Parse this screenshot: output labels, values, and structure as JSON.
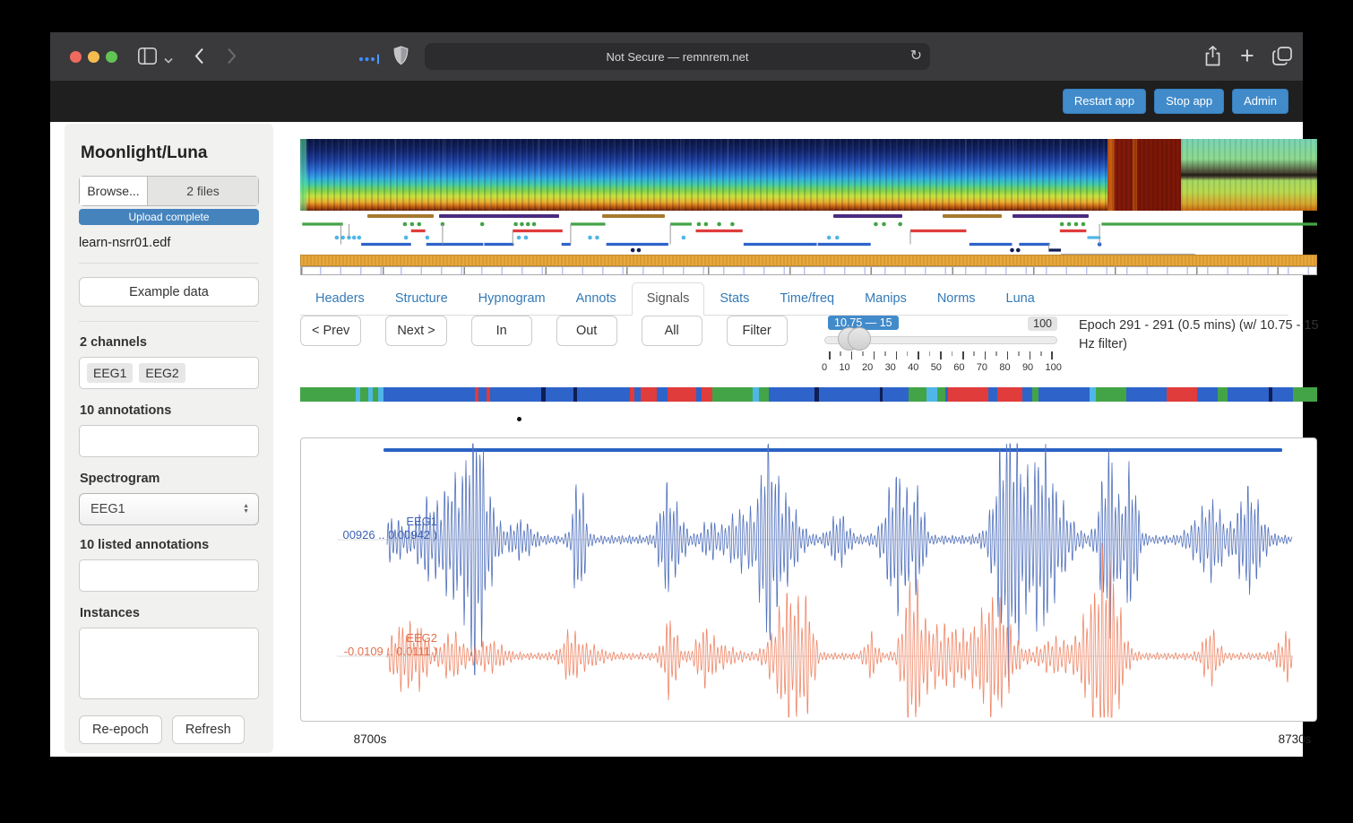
{
  "browser": {
    "url_text": "Not Secure — remnrem.net"
  },
  "app_header": {
    "restart_label": "Restart app",
    "stop_label": "Stop app",
    "admin_label": "Admin"
  },
  "sidebar": {
    "title": "Moonlight/Luna",
    "browse_label": "Browse...",
    "files_label": "2 files",
    "upload_status": "Upload complete",
    "file_name": "learn-nsrr01.edf",
    "example_button": "Example data",
    "channels_label": "2 channels",
    "channels": [
      "EEG1",
      "EEG2"
    ],
    "annotations_label": "10 annotations",
    "spectrogram_label": "Spectrogram",
    "spectrogram_value": "EEG1",
    "listed_annotations_label": "10 listed annotations",
    "instances_label": "Instances",
    "reepoch_button": "Re-epoch",
    "refresh_button": "Refresh"
  },
  "tabs": {
    "items": [
      "Headers",
      "Structure",
      "Hypnogram",
      "Annots",
      "Signals",
      "Stats",
      "Time/freq",
      "Manips",
      "Norms",
      "Luna"
    ],
    "active": "Signals"
  },
  "controls": {
    "prev": "< Prev",
    "next": "Next >",
    "in": "In",
    "out": "Out",
    "all": "All",
    "filter": "Filter"
  },
  "slider": {
    "range_label": "10.75 — 15",
    "max_label": "100",
    "from": 10.75,
    "to": 15,
    "min": 0,
    "max": 100,
    "ticks": [
      "0",
      "10",
      "20",
      "30",
      "40",
      "50",
      "60",
      "70",
      "80",
      "90",
      "100"
    ]
  },
  "epoch_info": "Epoch 291 - 291 (0.5 mins) (w/ 10.75 - 15 Hz filter)",
  "signals": {
    "eeg1": {
      "label": "EEG1",
      "range": "00926 .. 0.00942  )",
      "color": "#5272bd",
      "label_color": "#3f62b5"
    },
    "eeg2": {
      "label": "EEG2",
      "range": "-0.0109 .. 0.0111  )",
      "color": "#ef8767",
      "label_color": "#e4704e"
    },
    "x_start": "8700s",
    "x_end": "8730s",
    "marker_color": "#2a62c4"
  },
  "annotation_track": {
    "segments": [
      [
        "br",
        0.066,
        0.065
      ],
      [
        "pu",
        0.137,
        0.118
      ],
      [
        "br",
        0.297,
        0.062
      ],
      [
        "pu",
        0.524,
        0.068
      ],
      [
        "br",
        0.632,
        0.058
      ],
      [
        "pu",
        0.7,
        0.075
      ]
    ]
  },
  "hypnogram_track": {
    "items": [
      [
        "r",
        0.002,
        0.04,
        0,
        "g"
      ],
      [
        "d",
        0.036,
        2,
        0,
        "c"
      ],
      [
        "d",
        0.042,
        2,
        0,
        "c"
      ],
      [
        "d",
        0.048,
        2,
        0,
        "c"
      ],
      [
        "d",
        0.053,
        2,
        0,
        "c"
      ],
      [
        "d",
        0.058,
        2,
        0,
        "c"
      ],
      [
        "v",
        0.04,
        0,
        3,
        ""
      ],
      [
        "v",
        0.048,
        0,
        2,
        ""
      ],
      [
        "r",
        0.06,
        0.049,
        3,
        "b"
      ],
      [
        "d",
        0.103,
        0,
        0,
        "g"
      ],
      [
        "d",
        0.11,
        0,
        0,
        "g"
      ],
      [
        "d",
        0.117,
        0,
        0,
        "g"
      ],
      [
        "r",
        0.109,
        0.014,
        1,
        "r"
      ],
      [
        "d",
        0.104,
        2,
        0,
        "c"
      ],
      [
        "d",
        0.125,
        2,
        0,
        "c"
      ],
      [
        "r",
        0.124,
        0.056,
        3,
        "b"
      ],
      [
        "d",
        0.14,
        0,
        0,
        "g"
      ],
      [
        "v",
        0.14,
        0,
        3,
        ""
      ],
      [
        "d",
        0.179,
        0,
        0,
        "g"
      ],
      [
        "r",
        0.181,
        0.029,
        3,
        "b"
      ],
      [
        "d",
        0.212,
        0,
        0,
        "g"
      ],
      [
        "d",
        0.218,
        0,
        0,
        "g"
      ],
      [
        "d",
        0.224,
        0,
        0,
        "g"
      ],
      [
        "d",
        0.23,
        0,
        0,
        "g"
      ],
      [
        "r",
        0.209,
        0.049,
        1,
        "r"
      ],
      [
        "d",
        0.215,
        2,
        0,
        "c"
      ],
      [
        "d",
        0.222,
        2,
        0,
        "c"
      ],
      [
        "v",
        0.209,
        1,
        3,
        ""
      ],
      [
        "r",
        0.257,
        0.009,
        3,
        "b"
      ],
      [
        "r",
        0.266,
        0.034,
        0,
        "g"
      ],
      [
        "v",
        0.266,
        0,
        3,
        ""
      ],
      [
        "d",
        0.285,
        2,
        0,
        "c"
      ],
      [
        "d",
        0.292,
        2,
        0,
        "c"
      ],
      [
        "r",
        0.301,
        0.061,
        3,
        "b"
      ],
      [
        "d",
        0.327,
        4,
        0,
        "n"
      ],
      [
        "d",
        0.333,
        4,
        0,
        "n"
      ],
      [
        "r",
        0.364,
        0.021,
        0,
        "g"
      ],
      [
        "v",
        0.364,
        0,
        3,
        ""
      ],
      [
        "d",
        0.377,
        2,
        0,
        "c"
      ],
      [
        "d",
        0.392,
        0,
        0,
        "g"
      ],
      [
        "d",
        0.399,
        0,
        0,
        "g"
      ],
      [
        "d",
        0.412,
        0,
        0,
        "g"
      ],
      [
        "d",
        0.425,
        0,
        0,
        "g"
      ],
      [
        "r",
        0.389,
        0.046,
        1,
        "r"
      ],
      [
        "r",
        0.436,
        0.072,
        3,
        "b"
      ],
      [
        "d",
        0.52,
        2,
        0,
        "c"
      ],
      [
        "d",
        0.528,
        2,
        0,
        "c"
      ],
      [
        "r",
        0.509,
        0.052,
        3,
        "b"
      ],
      [
        "d",
        0.566,
        0,
        0,
        "g"
      ],
      [
        "d",
        0.574,
        0,
        0,
        "g"
      ],
      [
        "d",
        0.59,
        0,
        0,
        "g"
      ],
      [
        "r",
        0.6,
        0.055,
        1,
        "r"
      ],
      [
        "v",
        0.6,
        1,
        3,
        ""
      ],
      [
        "r",
        0.658,
        0.042,
        3,
        "b"
      ],
      [
        "d",
        0.7,
        4,
        0,
        "n"
      ],
      [
        "d",
        0.706,
        4,
        0,
        "n"
      ],
      [
        "r",
        0.707,
        0.03,
        3,
        "b"
      ],
      [
        "r",
        0.736,
        0.012,
        4,
        "n"
      ],
      [
        "v",
        0.736,
        3,
        4,
        ""
      ],
      [
        "r",
        0.747,
        0.026,
        1,
        "r"
      ],
      [
        "d",
        0.749,
        0,
        0,
        "g"
      ],
      [
        "d",
        0.756,
        0,
        0,
        "g"
      ],
      [
        "d",
        0.763,
        0,
        0,
        "g"
      ],
      [
        "d",
        0.77,
        0,
        0,
        "g"
      ],
      [
        "r",
        0.774,
        0.013,
        2,
        "c"
      ],
      [
        "d",
        0.786,
        3,
        0,
        "b"
      ],
      [
        "v",
        0.786,
        0,
        3,
        ""
      ],
      [
        "h",
        0.748,
        0.132,
        0,
        ""
      ],
      [
        "r",
        0.788,
        0.212,
        0,
        "g"
      ]
    ]
  },
  "stage_band": {
    "segments": [
      [
        "g",
        55
      ],
      [
        "c",
        4
      ],
      [
        "g",
        8
      ],
      [
        "c",
        4
      ],
      [
        "g",
        6
      ],
      [
        "c",
        5
      ],
      [
        "b",
        90
      ],
      [
        "r",
        3
      ],
      [
        "b",
        8
      ],
      [
        "r",
        4
      ],
      [
        "b",
        50
      ],
      [
        "n",
        4
      ],
      [
        "b",
        28
      ],
      [
        "n",
        3
      ],
      [
        "b",
        52
      ],
      [
        "r",
        5
      ],
      [
        "b",
        6
      ],
      [
        "r",
        16
      ],
      [
        "b",
        10
      ],
      [
        "r",
        28
      ],
      [
        "b",
        6
      ],
      [
        "r",
        10
      ],
      [
        "g",
        40
      ],
      [
        "c",
        6
      ],
      [
        "g",
        10
      ],
      [
        "b",
        45
      ],
      [
        "n",
        4
      ],
      [
        "b",
        60
      ],
      [
        "n",
        3
      ],
      [
        "b",
        25
      ],
      [
        "g",
        18
      ],
      [
        "c",
        10
      ],
      [
        "g",
        8
      ],
      [
        "b",
        3
      ],
      [
        "r",
        40
      ],
      [
        "b",
        8
      ],
      [
        "r",
        25
      ],
      [
        "b",
        10
      ],
      [
        "g",
        6
      ],
      [
        "b",
        50
      ],
      [
        "c",
        6
      ],
      [
        "g",
        30
      ],
      [
        "b",
        40
      ],
      [
        "r",
        30
      ],
      [
        "b",
        20
      ],
      [
        "g",
        10
      ],
      [
        "b",
        40
      ],
      [
        "n",
        4
      ],
      [
        "b",
        20
      ],
      [
        "g",
        24
      ]
    ]
  },
  "colors": {
    "wake_green": "#43a447",
    "n2_blue": "#2e63c9",
    "n1_cyan": "#4fb6e7",
    "rem_red": "#e03c3c",
    "n3_navy": "#0f1e55",
    "annot_brown": "#a6792f",
    "annot_purple": "#4b2b7f",
    "accent_blue": "#428bca"
  }
}
